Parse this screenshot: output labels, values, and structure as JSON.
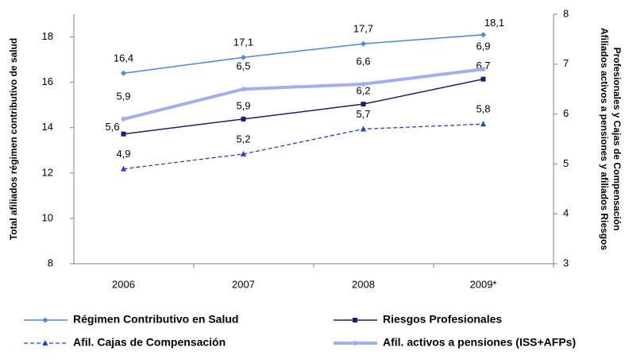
{
  "chart_data": {
    "type": "line",
    "ylabel": "Total afiliados régimen contributivo de salud",
    "y2label": [
      "Afiliados activos a pensiones y afiliados Riesgos",
      "Profesionales y Cajas de Compensación"
    ],
    "categories": [
      "2006",
      "2007",
      "2008",
      "2009*"
    ],
    "ylim": [
      8,
      19
    ],
    "yticks": [
      8,
      10,
      12,
      14,
      16,
      18
    ],
    "y2lim": [
      3,
      8
    ],
    "y2ticks": [
      3,
      4,
      5,
      6,
      7,
      8
    ],
    "series": [
      {
        "name": "Régimen Contributivo en Salud",
        "color": "#4a86e8",
        "marker": "diamond",
        "width": 1.5,
        "values": [
          16.4,
          17.1,
          17.7,
          18.1
        ],
        "value_labels": [
          "16,4",
          "17,1",
          "17,7",
          "18,1"
        ]
      },
      {
        "name": "Riesgos  Profesionales",
        "color": "#1a1f6e",
        "marker": "square",
        "width": 1.5,
        "axis": "y2",
        "values": [
          5.6,
          5.9,
          6.2,
          6.7
        ],
        "value_labels": [
          "5,6",
          "5,9",
          "6,2",
          "6,7"
        ]
      },
      {
        "name": "Afil. Cajas de Compensación",
        "color": "#2a3fd0",
        "marker": "triangle",
        "width": 1.3,
        "dashed": true,
        "axis": "y2",
        "values": [
          4.9,
          5.2,
          5.7,
          5.8
        ],
        "value_labels": [
          "4,9",
          "5,2",
          "5,7",
          "5,8"
        ]
      },
      {
        "name": "Afil. activos  a  pensiones (ISS+AFPs)",
        "color": "#a3aef0",
        "marker": "circle",
        "width": 4,
        "axis": "y2",
        "values": [
          5.9,
          6.5,
          6.6,
          6.9
        ],
        "value_labels": [
          "5,9",
          "6,5",
          "6,6",
          "6,9"
        ]
      }
    ]
  }
}
